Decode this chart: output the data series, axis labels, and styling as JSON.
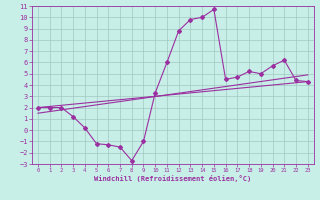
{
  "x_data": [
    0,
    1,
    2,
    3,
    4,
    5,
    6,
    7,
    8,
    9,
    10,
    11,
    12,
    13,
    14,
    15,
    16,
    17,
    18,
    19,
    20,
    21,
    22,
    23
  ],
  "y_main": [
    2,
    2,
    2,
    1.2,
    0.2,
    -1.2,
    -1.3,
    -1.5,
    -2.7,
    -1.0,
    3.3,
    6.0,
    8.8,
    9.8,
    10.0,
    10.7,
    4.5,
    4.7,
    5.2,
    5.0,
    5.7,
    6.2,
    4.4,
    4.3
  ],
  "trend1_x": [
    0,
    23
  ],
  "trend1_y": [
    2.0,
    4.3
  ],
  "trend2_x": [
    0,
    23
  ],
  "trend2_y": [
    1.5,
    4.9
  ],
  "xlim": [
    -0.5,
    23.5
  ],
  "ylim": [
    -3,
    11
  ],
  "xticks": [
    0,
    1,
    2,
    3,
    4,
    5,
    6,
    7,
    8,
    9,
    10,
    11,
    12,
    13,
    14,
    15,
    16,
    17,
    18,
    19,
    20,
    21,
    22,
    23
  ],
  "yticks": [
    -3,
    -2,
    -1,
    0,
    1,
    2,
    3,
    4,
    5,
    6,
    7,
    8,
    9,
    10,
    11
  ],
  "xlabel": "Windchill (Refroidissement éolien,°C)",
  "line_color": "#9b30a0",
  "bg_color": "#c8eee8",
  "grid_color": "#a0c8c0",
  "marker": "D",
  "marker_size": 2,
  "line_width": 0.8
}
